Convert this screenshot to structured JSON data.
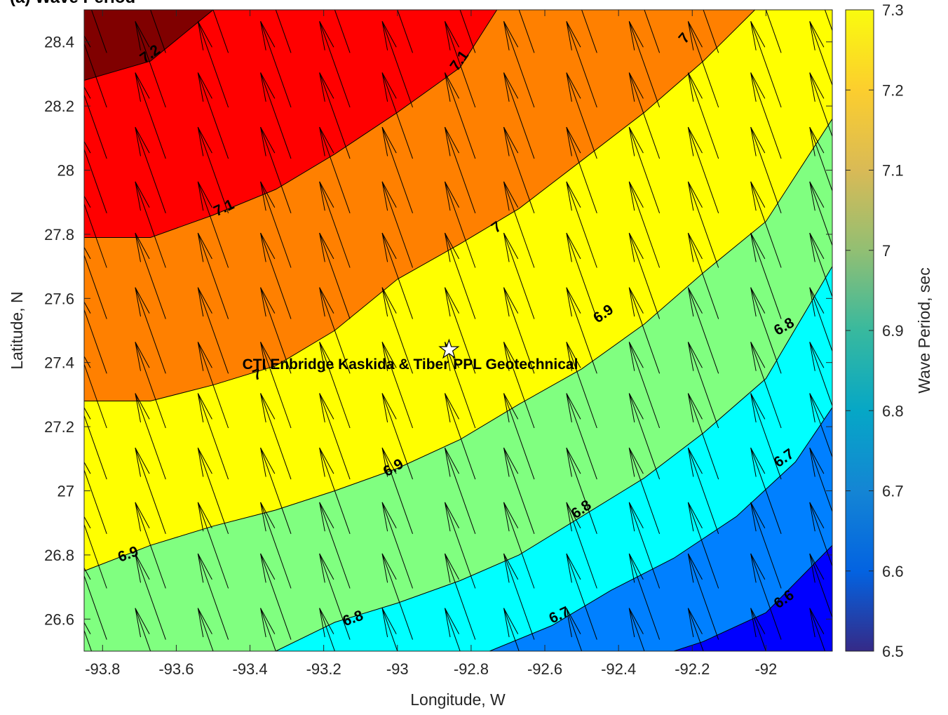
{
  "chart_data": {
    "type": "contour",
    "title": "(a)        Wave Period",
    "xlabel": "Longitude, W",
    "ylabel": "Latitude, N",
    "xlim": [
      -93.85,
      -91.82
    ],
    "ylim": [
      26.5,
      28.5
    ],
    "xticks": [
      "-93.8",
      "-93.6",
      "-93.4",
      "-93.2",
      "-93",
      "-92.8",
      "-92.6",
      "-92.4",
      "-92.2",
      "-92"
    ],
    "yticks": [
      "26.6",
      "26.8",
      "27",
      "27.2",
      "27.4",
      "27.6",
      "27.8",
      "28",
      "28.2",
      "28.4"
    ],
    "colorbar": {
      "label": "Wave Period, sec",
      "range": [
        6.5,
        7.3
      ],
      "ticks": [
        "6.5",
        "6.6",
        "6.7",
        "6.8",
        "6.9",
        "7",
        "7.1",
        "7.2",
        "7.3"
      ]
    },
    "contour_levels": [
      {
        "level": 7.2,
        "label": "7.2",
        "color": "#800000",
        "line": [
          [
            -93.85,
            28.28
          ],
          [
            -93.67,
            28.34
          ],
          [
            -93.5,
            28.5
          ]
        ]
      },
      {
        "level": 7.1,
        "label": "7.1",
        "color": "#ff0000",
        "line": [
          [
            -93.85,
            27.79
          ],
          [
            -93.67,
            27.79
          ],
          [
            -93.5,
            27.86
          ],
          [
            -93.33,
            27.94
          ],
          [
            -93.17,
            28.05
          ],
          [
            -93.0,
            28.18
          ],
          [
            -92.83,
            28.32
          ],
          [
            -92.73,
            28.5
          ]
        ]
      },
      {
        "level": 7.0,
        "label": "7",
        "color": "#ff8000",
        "line": [
          [
            -93.85,
            27.28
          ],
          [
            -93.67,
            27.28
          ],
          [
            -93.5,
            27.33
          ],
          [
            -93.33,
            27.39
          ],
          [
            -93.17,
            27.5
          ],
          [
            -93.0,
            27.66
          ],
          [
            -92.83,
            27.77
          ],
          [
            -92.67,
            27.88
          ],
          [
            -92.5,
            28.03
          ],
          [
            -92.33,
            28.18
          ],
          [
            -92.17,
            28.34
          ],
          [
            -92.03,
            28.5
          ]
        ]
      },
      {
        "level": 6.9,
        "label": "6.9",
        "color": "#ffff00",
        "line": [
          [
            -93.85,
            26.75
          ],
          [
            -93.67,
            26.83
          ],
          [
            -93.5,
            26.89
          ],
          [
            -93.33,
            26.94
          ],
          [
            -93.17,
            27.0
          ],
          [
            -93.0,
            27.07
          ],
          [
            -92.83,
            27.16
          ],
          [
            -92.67,
            27.27
          ],
          [
            -92.5,
            27.38
          ],
          [
            -92.33,
            27.52
          ],
          [
            -92.17,
            27.68
          ],
          [
            -92.0,
            27.84
          ],
          [
            -91.82,
            28.16
          ]
        ]
      },
      {
        "level": 6.8,
        "label": "6.8",
        "color": "#80ff80",
        "line": [
          [
            -93.33,
            26.5
          ],
          [
            -93.17,
            26.59
          ],
          [
            -93.0,
            26.65
          ],
          [
            -92.83,
            26.72
          ],
          [
            -92.67,
            26.8
          ],
          [
            -92.5,
            26.92
          ],
          [
            -92.33,
            27.04
          ],
          [
            -92.17,
            27.18
          ],
          [
            -92.0,
            27.35
          ],
          [
            -91.82,
            27.7
          ]
        ]
      },
      {
        "level": 6.7,
        "label": "6.7",
        "color": "#00ffff",
        "line": [
          [
            -92.75,
            26.5
          ],
          [
            -92.58,
            26.58
          ],
          [
            -92.42,
            26.69
          ],
          [
            -92.25,
            26.79
          ],
          [
            -92.08,
            26.92
          ],
          [
            -91.92,
            27.09
          ],
          [
            -91.82,
            27.26
          ]
        ]
      },
      {
        "level": 6.6,
        "label": "6.6",
        "color": "#0080ff",
        "line": [
          [
            -92.25,
            26.5
          ],
          [
            -92.17,
            26.53
          ],
          [
            -92.0,
            26.62
          ],
          [
            -91.82,
            26.83
          ]
        ]
      }
    ],
    "bottom_fill_color": "#0000ff",
    "contour_labels": [
      {
        "text": "7.2",
        "x": -93.67,
        "y": 28.36,
        "angle": -35
      },
      {
        "text": "7.1",
        "x": -92.83,
        "y": 28.34,
        "angle": -55
      },
      {
        "text": "7",
        "x": -92.22,
        "y": 28.41,
        "angle": -50
      },
      {
        "text": "7.1",
        "x": -93.47,
        "y": 27.88,
        "angle": -25
      },
      {
        "text": "7",
        "x": -92.73,
        "y": 27.82,
        "angle": -35
      },
      {
        "text": "6.9",
        "x": -92.44,
        "y": 27.55,
        "angle": -35
      },
      {
        "text": "6.8",
        "x": -91.95,
        "y": 27.51,
        "angle": -30
      },
      {
        "text": "7",
        "x": -93.38,
        "y": 27.36,
        "angle": -20
      },
      {
        "text": "6.9",
        "x": -93.01,
        "y": 27.07,
        "angle": -30
      },
      {
        "text": "6.7",
        "x": -91.95,
        "y": 27.1,
        "angle": -35
      },
      {
        "text": "6.8",
        "x": -92.5,
        "y": 26.94,
        "angle": -35
      },
      {
        "text": "6.9",
        "x": -93.73,
        "y": 26.8,
        "angle": -20
      },
      {
        "text": "6.8",
        "x": -93.12,
        "y": 26.6,
        "angle": -20
      },
      {
        "text": "6.7",
        "x": -92.56,
        "y": 26.61,
        "angle": -25
      },
      {
        "text": "6.6",
        "x": -91.95,
        "y": 26.66,
        "angle": -35
      }
    ],
    "vectors": {
      "lons": [
        -93.83,
        -93.67,
        -93.5,
        -93.33,
        -93.17,
        -93.0,
        -92.83,
        -92.67,
        -92.5,
        -92.33,
        -92.17,
        -92.0,
        -91.84
      ],
      "lats": [
        26.5,
        26.67,
        26.83,
        27.0,
        27.17,
        27.33,
        27.5,
        27.67,
        27.83,
        28.0,
        28.17,
        28.33,
        28.5
      ],
      "direction": "north-northwest",
      "scale": 0.3
    },
    "station": {
      "label": "CTI Enbridge  Kaskida & Tiber PPL Geotechnical",
      "lon": -92.86,
      "lat": 27.44
    }
  }
}
